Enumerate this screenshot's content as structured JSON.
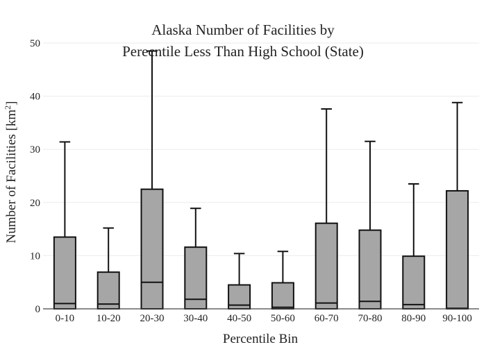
{
  "chart_data": {
    "type": "box",
    "title_lines": [
      "Alaska Number of Facilities by",
      "Perecntile Less Than High School (State)"
    ],
    "xlabel": "Percentile Bin",
    "ylabel": "Number of Facilities  [km",
    "ylabel_sup": "2",
    "ylabel_close": "]",
    "ylim": [
      0,
      50
    ],
    "yticks": [
      0,
      10,
      20,
      30,
      40,
      50
    ],
    "grid": true,
    "categories": [
      "0-10",
      "10-20",
      "20-30",
      "30-40",
      "40-50",
      "50-60",
      "60-70",
      "70-80",
      "80-90",
      "90-100"
    ],
    "series": [
      {
        "q1": [
          0,
          0,
          0,
          0,
          0,
          0,
          0,
          0,
          0,
          0
        ],
        "median": [
          1.0,
          0.9,
          5.0,
          1.8,
          0.7,
          0.3,
          1.1,
          1.4,
          0.8,
          0.1
        ],
        "q3": [
          13.5,
          6.9,
          22.5,
          11.6,
          4.5,
          4.9,
          16.1,
          14.8,
          9.9,
          22.2
        ],
        "whisker_low": [
          0,
          0,
          0,
          0,
          0,
          0,
          0,
          0,
          0,
          0
        ],
        "whisker_high": [
          31.4,
          15.2,
          48.5,
          18.9,
          10.4,
          10.8,
          37.6,
          31.5,
          23.5,
          38.8
        ]
      }
    ],
    "box_color": "#a6a6a6",
    "line_color": "#111111"
  }
}
